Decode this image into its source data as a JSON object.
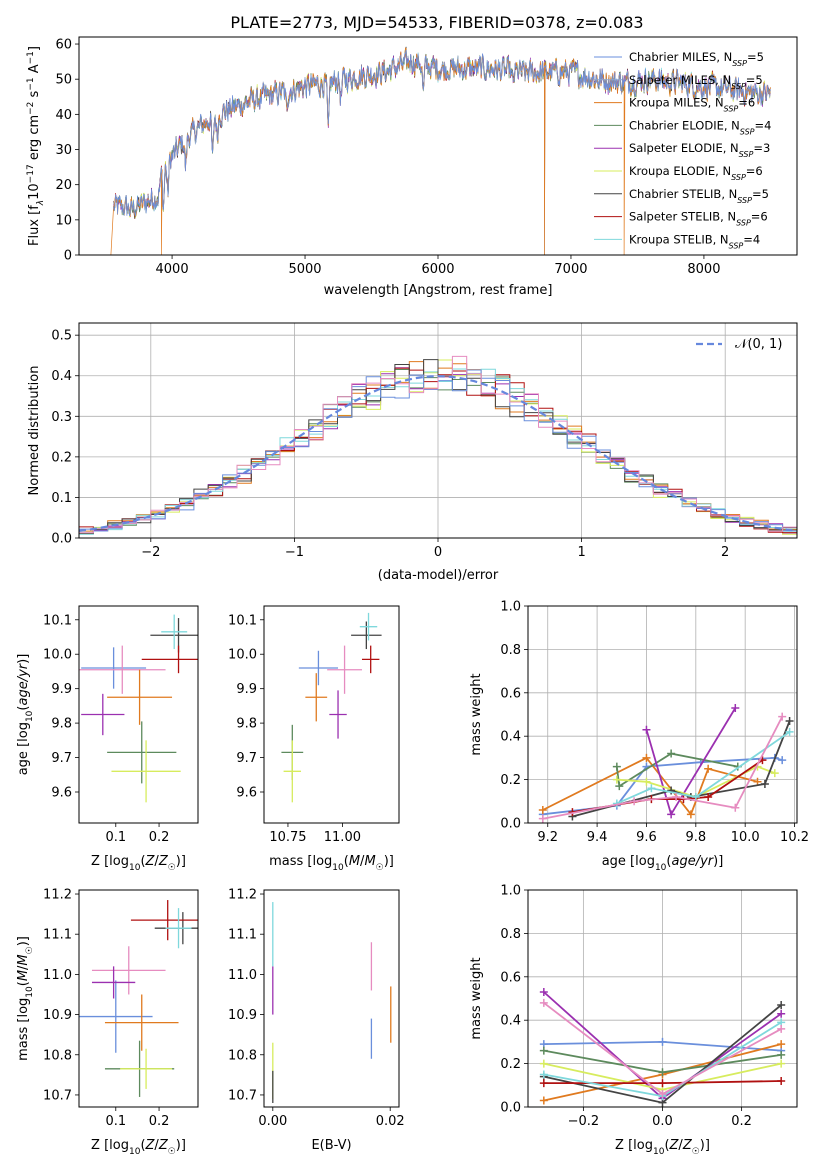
{
  "figure": {
    "title": "PLATE=2773, MJD=54533, FIBERID=0378, z=0.083",
    "colors": {
      "Chabrier MILES": "#6a8fdc",
      "Salpeter MILES": "#8fa6cf",
      "Kroupa MILES": "#e07a1f",
      "Chabrier ELODIE": "#5d8a5d",
      "Salpeter ELODIE": "#9b30b0",
      "Kroupa ELODIE": "#d7ec5e",
      "Chabrier STELIB": "#444444",
      "Salpeter STELIB": "#b01010",
      "Kroupa STELIB": "#7fd8dc",
      "extra_pink": "#e68cc0",
      "gauss": "#6688dd"
    }
  },
  "chart_data": [
    {
      "id": "spectrum",
      "type": "line",
      "xlabel": "wavelength [Angstrom, rest frame]",
      "ylabel_parts": [
        "Flux [f",
        "λ",
        "10",
        "−17",
        " erg cm",
        "−2",
        " s",
        "−1",
        " A",
        "−1",
        "]"
      ],
      "xlim": [
        3300,
        8700
      ],
      "ylim": [
        0,
        62
      ],
      "xticks": [
        4000,
        5000,
        6000,
        7000,
        8000
      ],
      "yticks": [
        0,
        10,
        20,
        30,
        40,
        50,
        60
      ],
      "legend_position": "top-right",
      "legend": [
        {
          "label": "Chabrier MILES, N",
          "sub": "SSP",
          "val": "=5",
          "color": "#6a8fdc"
        },
        {
          "label": "Salpeter MILES, N",
          "sub": "SSP",
          "val": "=5",
          "color": "#8fa6cf"
        },
        {
          "label": "Kroupa MILES, N",
          "sub": "SSP",
          "val": "=6",
          "color": "#e07a1f"
        },
        {
          "label": "Chabrier ELODIE, N",
          "sub": "SSP",
          "val": "=4",
          "color": "#5d8a5d"
        },
        {
          "label": "Salpeter ELODIE, N",
          "sub": "SSP",
          "val": "=3",
          "color": "#9b30b0"
        },
        {
          "label": "Kroupa ELODIE, N",
          "sub": "SSP",
          "val": "=6",
          "color": "#d7ec5e"
        },
        {
          "label": "Chabrier STELIB, N",
          "sub": "SSP",
          "val": "=5",
          "color": "#444444"
        },
        {
          "label": "Salpeter STELIB, N",
          "sub": "SSP",
          "val": "=6",
          "color": "#b01010"
        },
        {
          "label": "Kroupa STELIB, N",
          "sub": "SSP",
          "val": "=4",
          "color": "#7fd8dc"
        }
      ],
      "continuum": [
        [
          3560,
          14
        ],
        [
          3700,
          13
        ],
        [
          3900,
          17
        ],
        [
          3920,
          24
        ],
        [
          4000,
          28
        ],
        [
          4100,
          33
        ],
        [
          4200,
          36
        ],
        [
          4300,
          39
        ],
        [
          4400,
          41
        ],
        [
          4600,
          44
        ],
        [
          4800,
          46
        ],
        [
          5000,
          48
        ],
        [
          5200,
          49
        ],
        [
          5400,
          51
        ],
        [
          5600,
          52
        ],
        [
          5800,
          55
        ],
        [
          6000,
          53
        ],
        [
          6200,
          53
        ],
        [
          6400,
          53
        ],
        [
          6600,
          52
        ],
        [
          6800,
          52
        ],
        [
          7000,
          52
        ],
        [
          7200,
          50
        ],
        [
          7400,
          49
        ],
        [
          7600,
          50
        ],
        [
          7800,
          49
        ],
        [
          8000,
          48
        ],
        [
          8200,
          47
        ],
        [
          8400,
          46
        ],
        [
          8500,
          46
        ]
      ],
      "absorption": [
        [
          3934,
          11
        ],
        [
          3968,
          9
        ],
        [
          4102,
          8
        ],
        [
          4305,
          12
        ],
        [
          4340,
          6
        ],
        [
          4861,
          5
        ],
        [
          5175,
          15
        ],
        [
          5270,
          5
        ],
        [
          5890,
          8
        ],
        [
          6563,
          4
        ]
      ],
      "dropouts": [
        {
          "series": "Kroupa MILES",
          "x": [
            3540,
            3920,
            6800,
            7400
          ]
        },
        {
          "series": "Salpeter MILES",
          "x": [
            6800
          ]
        }
      ]
    },
    {
      "id": "residual-histogram",
      "type": "histogram",
      "xlabel": "(data-model)/error",
      "ylabel": "Normed distribution",
      "xlim": [
        -2.5,
        2.5
      ],
      "ylim": [
        0,
        0.53
      ],
      "xticks": [
        -2,
        -1,
        0,
        1,
        2
      ],
      "yticks": [
        0.0,
        0.1,
        0.2,
        0.3,
        0.4,
        0.5
      ],
      "grid": true,
      "legend_position": "top-right",
      "gauss_label": "𝒩(0, 1)",
      "bin_width": 0.1
    },
    {
      "id": "age-vs-Z",
      "type": "scatter",
      "xlabel": "Z [log10(Z/Z☉)]",
      "ylabel": "age [log10(age/yr)]",
      "xlim": [
        0.015,
        0.29
      ],
      "ylim": [
        9.51,
        10.14
      ],
      "xticks": [
        0.1,
        0.2
      ],
      "yticks": [
        9.6,
        9.7,
        9.8,
        9.9,
        10.0,
        10.1
      ],
      "points": [
        {
          "color": "#6a8fdc",
          "x": 0.095,
          "y": 9.96,
          "xerr": 0.075,
          "yerr": 0.06
        },
        {
          "color": "#e68cc0",
          "x": 0.115,
          "y": 9.955,
          "xerr": 0.1,
          "yerr": 0.07
        },
        {
          "color": "#e07a1f",
          "x": 0.155,
          "y": 9.875,
          "xerr": 0.075,
          "yerr": 0.08
        },
        {
          "color": "#9b30b0",
          "x": 0.07,
          "y": 9.825,
          "xerr": 0.05,
          "yerr": 0.06
        },
        {
          "color": "#5d8a5d",
          "x": 0.16,
          "y": 9.715,
          "xerr": 0.08,
          "yerr": 0.09
        },
        {
          "color": "#d7ec5e",
          "x": 0.17,
          "y": 9.66,
          "xerr": 0.08,
          "yerr": 0.09
        },
        {
          "color": "#444444",
          "x": 0.245,
          "y": 10.055,
          "xerr": 0.065,
          "yerr": 0.05
        },
        {
          "color": "#b01010",
          "x": 0.245,
          "y": 9.985,
          "xerr": 0.085,
          "yerr": 0.04
        },
        {
          "color": "#7fd8dc",
          "x": 0.235,
          "y": 10.065,
          "xerr": 0.03,
          "yerr": 0.05
        }
      ]
    },
    {
      "id": "age-vs-mass",
      "type": "scatter",
      "xlabel": "mass [log10(M/M☉)]",
      "ylabel": "",
      "xlim": [
        10.64,
        11.26
      ],
      "ylim": [
        9.51,
        10.14
      ],
      "xticks": [
        10.75,
        11.0
      ],
      "yticks": [
        9.6,
        9.7,
        9.8,
        9.9,
        10.0,
        10.1
      ],
      "points": [
        {
          "color": "#6a8fdc",
          "x": 10.89,
          "y": 9.96,
          "xerr": 0.09,
          "yerr": 0.05
        },
        {
          "color": "#e68cc0",
          "x": 11.01,
          "y": 9.955,
          "xerr": 0.08,
          "yerr": 0.07
        },
        {
          "color": "#e07a1f",
          "x": 10.88,
          "y": 9.875,
          "xerr": 0.05,
          "yerr": 0.07
        },
        {
          "color": "#9b30b0",
          "x": 10.98,
          "y": 9.825,
          "xerr": 0.04,
          "yerr": 0.07
        },
        {
          "color": "#5d8a5d",
          "x": 10.77,
          "y": 9.715,
          "xerr": 0.05,
          "yerr": 0.08
        },
        {
          "color": "#d7ec5e",
          "x": 10.77,
          "y": 9.66,
          "xerr": 0.04,
          "yerr": 0.09
        },
        {
          "color": "#444444",
          "x": 11.11,
          "y": 10.055,
          "xerr": 0.07,
          "yerr": 0.04
        },
        {
          "color": "#b01010",
          "x": 11.13,
          "y": 9.985,
          "xerr": 0.04,
          "yerr": 0.04
        },
        {
          "color": "#7fd8dc",
          "x": 11.12,
          "y": 10.08,
          "xerr": 0.04,
          "yerr": 0.04
        }
      ]
    },
    {
      "id": "massweight-vs-age",
      "type": "line",
      "xlabel": "age [log10(age/yr)]",
      "ylabel": "mass weight",
      "xlim": [
        9.12,
        10.21
      ],
      "ylim": [
        0,
        1
      ],
      "xticks": [
        9.2,
        9.4,
        9.6,
        9.8,
        10.0,
        10.2
      ],
      "yticks": [
        0.0,
        0.2,
        0.4,
        0.6,
        0.8,
        1.0
      ],
      "grid": true,
      "series": [
        {
          "color": "#6a8fdc",
          "points": [
            [
              9.18,
              0.04
            ],
            [
              9.48,
              0.08
            ],
            [
              9.6,
              0.26
            ],
            [
              9.82,
              0.28
            ],
            [
              10.12,
              0.3
            ],
            [
              10.15,
              0.29
            ]
          ]
        },
        {
          "color": "#e07a1f",
          "points": [
            [
              9.18,
              0.06
            ],
            [
              9.6,
              0.3
            ],
            [
              9.78,
              0.04
            ],
            [
              9.85,
              0.25
            ],
            [
              10.05,
              0.19
            ]
          ]
        },
        {
          "color": "#5d8a5d",
          "points": [
            [
              9.48,
              0.26
            ],
            [
              9.49,
              0.17
            ],
            [
              9.7,
              0.32
            ],
            [
              9.97,
              0.26
            ]
          ]
        },
        {
          "color": "#9b30b0",
          "points": [
            [
              9.6,
              0.43
            ],
            [
              9.7,
              0.04
            ],
            [
              9.96,
              0.53
            ]
          ]
        },
        {
          "color": "#d7ec5e",
          "points": [
            [
              9.48,
              0.2
            ],
            [
              9.6,
              0.19
            ],
            [
              9.8,
              0.12
            ],
            [
              10.05,
              0.26
            ],
            [
              10.12,
              0.23
            ]
          ]
        },
        {
          "color": "#444444",
          "points": [
            [
              9.3,
              0.03
            ],
            [
              9.7,
              0.15
            ],
            [
              9.78,
              0.12
            ],
            [
              10.08,
              0.18
            ],
            [
              10.18,
              0.47
            ]
          ]
        },
        {
          "color": "#b01010",
          "points": [
            [
              9.3,
              0.05
            ],
            [
              9.62,
              0.11
            ],
            [
              9.75,
              0.11
            ],
            [
              9.85,
              0.12
            ],
            [
              10.07,
              0.29
            ]
          ]
        },
        {
          "color": "#7fd8dc",
          "points": [
            [
              9.48,
              0.09
            ],
            [
              9.62,
              0.16
            ],
            [
              9.8,
              0.12
            ],
            [
              10.18,
              0.42
            ]
          ]
        },
        {
          "color": "#e68cc0",
          "points": [
            [
              9.18,
              0.02
            ],
            [
              9.55,
              0.1
            ],
            [
              9.72,
              0.12
            ],
            [
              9.96,
              0.07
            ],
            [
              10.15,
              0.49
            ]
          ]
        }
      ]
    },
    {
      "id": "mass-vs-Z",
      "type": "scatter",
      "xlabel": "Z [log10(Z/Z☉)]",
      "ylabel": "mass [log10(M/M☉)]",
      "xlim": [
        0.015,
        0.29
      ],
      "ylim": [
        10.67,
        11.21
      ],
      "xticks": [
        0.1,
        0.2
      ],
      "yticks": [
        10.7,
        10.8,
        10.9,
        11.0,
        11.1,
        11.2
      ],
      "points": [
        {
          "color": "#6a8fdc",
          "x": 0.1,
          "y": 10.895,
          "xerr": 0.085,
          "yerr": 0.09
        },
        {
          "color": "#e68cc0",
          "x": 0.13,
          "y": 11.01,
          "xerr": 0.085,
          "yerr": 0.06
        },
        {
          "color": "#e07a1f",
          "x": 0.16,
          "y": 10.88,
          "xerr": 0.085,
          "yerr": 0.07
        },
        {
          "color": "#9b30b0",
          "x": 0.095,
          "y": 10.98,
          "xerr": 0.05,
          "yerr": 0.04
        },
        {
          "color": "#5d8a5d",
          "x": 0.155,
          "y": 10.765,
          "xerr": 0.08,
          "yerr": 0.07
        },
        {
          "color": "#d7ec5e",
          "x": 0.17,
          "y": 10.765,
          "xerr": 0.06,
          "yerr": 0.05
        },
        {
          "color": "#444444",
          "x": 0.255,
          "y": 11.115,
          "xerr": 0.065,
          "yerr": 0.04
        },
        {
          "color": "#b01010",
          "x": 0.22,
          "y": 11.135,
          "xerr": 0.085,
          "yerr": 0.05
        },
        {
          "color": "#7fd8dc",
          "x": 0.245,
          "y": 11.115,
          "xerr": 0.03,
          "yerr": 0.05
        }
      ]
    },
    {
      "id": "mass-vs-ebv",
      "type": "scatter",
      "xlabel": "E(B-V)",
      "ylabel": "",
      "xlim": [
        -0.0015,
        0.0215
      ],
      "ylim": [
        10.67,
        11.21
      ],
      "xticks": [
        0.0,
        0.02
      ],
      "xtick_labels": [
        "0.00",
        "0.02"
      ],
      "yticks": [
        10.7,
        10.8,
        10.9,
        11.0,
        11.1,
        11.2
      ],
      "points": [
        {
          "color": "#6a8fdc",
          "x": 0.0168,
          "y": 10.84,
          "xerr": 0,
          "yerr": 0.05
        },
        {
          "color": "#e68cc0",
          "x": 0.0168,
          "y": 11.02,
          "xerr": 0,
          "yerr": 0.06
        },
        {
          "color": "#e07a1f",
          "x": 0.0201,
          "y": 10.9,
          "xerr": 0,
          "yerr": 0.07
        },
        {
          "color": "#9b30b0",
          "x": 0.0,
          "y": 10.96,
          "xerr": 0,
          "yerr": 0.06
        },
        {
          "color": "#d7ec5e",
          "x": 0.0,
          "y": 10.76,
          "xerr": 0,
          "yerr": 0.07
        },
        {
          "color": "#7fd8dc",
          "x": 0.0,
          "y": 11.1,
          "xerr": 0,
          "yerr": 0.08
        },
        {
          "color": "#444444",
          "x": 0.0,
          "y": 10.72,
          "xerr": 0,
          "yerr": 0.04
        }
      ]
    },
    {
      "id": "massweight-vs-Z",
      "type": "line",
      "xlabel": "Z [log10(Z/Z☉)]",
      "ylabel": "mass weight",
      "xlim": [
        -0.34,
        0.34
      ],
      "ylim": [
        0,
        1
      ],
      "xticks": [
        -0.2,
        0.0,
        0.2
      ],
      "yticks": [
        0.0,
        0.2,
        0.4,
        0.6,
        0.8,
        1.0
      ],
      "grid": true,
      "series": [
        {
          "color": "#6a8fdc",
          "points": [
            [
              -0.3,
              0.29
            ],
            [
              0.0,
              0.3
            ],
            [
              0.3,
              0.26
            ]
          ]
        },
        {
          "color": "#e07a1f",
          "points": [
            [
              -0.3,
              0.03
            ],
            [
              0.0,
              0.15
            ],
            [
              0.3,
              0.29
            ]
          ]
        },
        {
          "color": "#5d8a5d",
          "points": [
            [
              -0.3,
              0.26
            ],
            [
              0.0,
              0.16
            ],
            [
              0.3,
              0.24
            ]
          ]
        },
        {
          "color": "#9b30b0",
          "points": [
            [
              -0.3,
              0.53
            ],
            [
              0.0,
              0.04
            ],
            [
              0.3,
              0.43
            ]
          ]
        },
        {
          "color": "#d7ec5e",
          "points": [
            [
              -0.3,
              0.2
            ],
            [
              0.0,
              0.08
            ],
            [
              0.3,
              0.2
            ]
          ]
        },
        {
          "color": "#444444",
          "points": [
            [
              -0.3,
              0.14
            ],
            [
              0.0,
              0.02
            ],
            [
              0.3,
              0.47
            ]
          ]
        },
        {
          "color": "#b01010",
          "points": [
            [
              -0.3,
              0.11
            ],
            [
              0.0,
              0.11
            ],
            [
              0.3,
              0.12
            ]
          ]
        },
        {
          "color": "#7fd8dc",
          "points": [
            [
              -0.3,
              0.15
            ],
            [
              0.0,
              0.05
            ],
            [
              0.3,
              0.39
            ]
          ]
        },
        {
          "color": "#e68cc0",
          "points": [
            [
              -0.3,
              0.48
            ],
            [
              0.0,
              0.06
            ],
            [
              0.3,
              0.36
            ]
          ]
        }
      ]
    }
  ]
}
